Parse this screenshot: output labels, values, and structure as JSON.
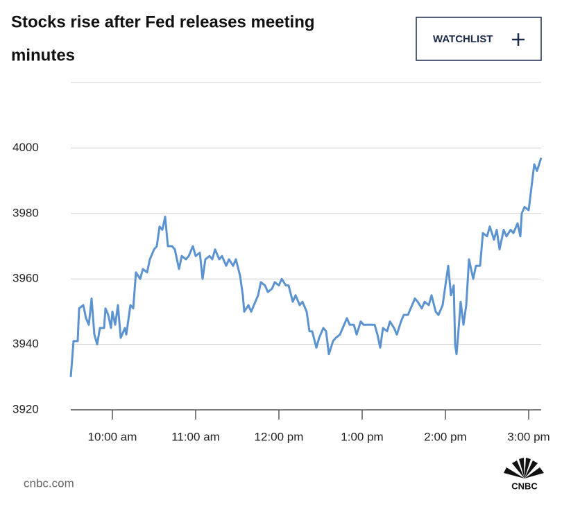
{
  "header": {
    "title_lines": [
      "Stocks rise after Fed releases meeting",
      "minutes"
    ],
    "button": "WATCHLIST"
  },
  "footer": {
    "source": "cnbc.com",
    "logo": "CNBC"
  },
  "chart_data": {
    "type": "line",
    "color": "#5b93d1",
    "grid": true,
    "xlim": [
      570,
      909
    ],
    "ylim": [
      3920,
      4020
    ],
    "yticks": [
      3920,
      3940,
      3960,
      3980,
      4000
    ],
    "xticks": [
      {
        "value": 600,
        "label": "10:00 am"
      },
      {
        "value": 660,
        "label": "11:00 am"
      },
      {
        "value": 720,
        "label": "12:00 pm"
      },
      {
        "value": 780,
        "label": "1:00 pm"
      },
      {
        "value": 840,
        "label": "2:00 pm"
      },
      {
        "value": 900,
        "label": "3:00 pm"
      }
    ],
    "x": [
      570,
      572,
      575,
      576,
      579,
      581,
      583,
      585,
      587,
      589,
      591,
      594,
      595,
      597,
      599,
      600,
      602,
      604,
      606,
      609,
      610,
      613,
      615,
      617,
      620,
      622,
      625,
      627,
      630,
      632,
      634,
      636,
      638,
      640,
      643,
      645,
      648,
      650,
      653,
      655,
      658,
      660,
      663,
      665,
      667,
      670,
      672,
      674,
      677,
      679,
      682,
      684,
      687,
      689,
      692,
      694,
      695,
      698,
      700,
      703,
      705,
      707,
      710,
      712,
      715,
      717,
      720,
      722,
      725,
      727,
      730,
      732,
      735,
      737,
      740,
      742,
      744,
      747,
      749,
      752,
      754,
      756,
      759,
      761,
      764,
      766,
      769,
      771,
      774,
      776,
      779,
      781,
      784,
      786,
      789,
      791,
      793,
      795,
      798,
      800,
      803,
      805,
      808,
      810,
      813,
      815,
      818,
      820,
      823,
      825,
      828,
      830,
      833,
      835,
      838,
      840,
      842,
      844,
      846,
      847,
      848,
      849,
      851,
      853,
      855,
      857,
      860,
      862,
      865,
      867,
      870,
      872,
      875,
      877,
      879,
      882,
      884,
      887,
      889,
      892,
      894,
      895,
      897,
      900,
      902,
      904,
      906,
      909
    ],
    "values": [
      3930,
      3941,
      3941,
      3951,
      3952,
      3948,
      3946,
      3954,
      3943,
      3940,
      3945,
      3945,
      3951,
      3949,
      3945,
      3950,
      3946,
      3952,
      3942,
      3945,
      3943,
      3952,
      3951,
      3962,
      3960,
      3963,
      3962,
      3966,
      3969,
      3970,
      3976,
      3975,
      3979,
      3970,
      3970,
      3969,
      3963,
      3967,
      3966,
      3967,
      3970,
      3967,
      3968,
      3960,
      3966,
      3967,
      3966,
      3969,
      3966,
      3967,
      3964,
      3966,
      3964,
      3966,
      3961,
      3955,
      3950,
      3952,
      3950,
      3953,
      3955,
      3959,
      3958,
      3956,
      3957,
      3959,
      3958,
      3960,
      3958,
      3958,
      3953,
      3955,
      3952,
      3953,
      3950,
      3944,
      3944,
      3939,
      3942,
      3945,
      3944,
      3937,
      3941,
      3942,
      3943,
      3945,
      3948,
      3946,
      3946,
      3943,
      3947,
      3946,
      3946,
      3946,
      3946,
      3943,
      3939,
      3945,
      3944,
      3947,
      3945,
      3943,
      3947,
      3949,
      3949,
      3951,
      3954,
      3953,
      3951,
      3953,
      3952,
      3955,
      3950,
      3949,
      3952,
      3958,
      3964,
      3955,
      3958,
      3940,
      3937,
      3942,
      3953,
      3946,
      3952,
      3966,
      3960,
      3964,
      3964,
      3974,
      3973,
      3976,
      3972,
      3975,
      3969,
      3975,
      3973,
      3975,
      3974,
      3977,
      3973,
      3980,
      3982,
      3981,
      3988,
      3995,
      3993,
      3997
    ]
  }
}
